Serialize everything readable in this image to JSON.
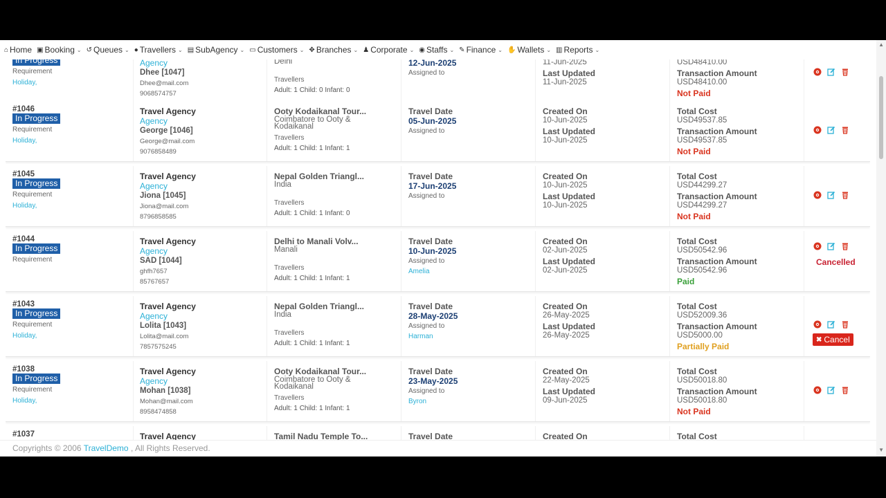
{
  "nav": [
    {
      "label": "Home",
      "icon": "home-icon",
      "chevron": false
    },
    {
      "label": "Booking",
      "icon": "briefcase-icon",
      "chevron": true
    },
    {
      "label": "Queues",
      "icon": "history-icon",
      "chevron": true
    },
    {
      "label": "Travellers",
      "icon": "user-icon",
      "chevron": true
    },
    {
      "label": "SubAgency",
      "icon": "building-icon",
      "chevron": true
    },
    {
      "label": "Customers",
      "icon": "id-card-icon",
      "chevron": true
    },
    {
      "label": "Branches",
      "icon": "sitemap-icon",
      "chevron": true
    },
    {
      "label": "Corporate",
      "icon": "users-icon",
      "chevron": true
    },
    {
      "label": "Staffs",
      "icon": "user-circle-icon",
      "chevron": true
    },
    {
      "label": "Finance",
      "icon": "pen-icon",
      "chevron": true
    },
    {
      "label": "Wallets",
      "icon": "handshake-icon",
      "chevron": true
    },
    {
      "label": "Reports",
      "icon": "bar-chart-icon",
      "chevron": true
    }
  ],
  "rows": [
    {
      "id": "",
      "status": "In Progress",
      "req": "Requirement",
      "holiday": "Holiday,",
      "agency": "",
      "agency_label": "Agency",
      "customer": "Dhee [1047]",
      "email": "Dhee@mail.com",
      "phone": "9068574757",
      "tour": "",
      "dest": "Delhi",
      "trav_label": "Travellers",
      "pax": "Adult: 1  Child: 0  Infant: 0",
      "travel_date_label": "",
      "travel_date": "12-Jun-2025",
      "assigned_label": "Assigned to",
      "assigned": "",
      "created_label": "",
      "created": "11-Jun-2025",
      "updated_label": "Last Updated",
      "updated": "11-Jun-2025",
      "cost_label": "",
      "cost": "USD48410.00",
      "txn_label": "Transaction Amount",
      "txn": "USD48410.00",
      "pay_status": "Not Paid",
      "pay_type": "np",
      "extra": ""
    },
    {
      "id": "#1046",
      "status": "In Progress",
      "req": "Requirement",
      "holiday": "Holiday,",
      "agency": "Travel Agency",
      "agency_label": "Agency",
      "customer": "George [1046]",
      "email": "George@mail.com",
      "phone": "9076858489",
      "tour": "Ooty Kodaikanal Tour...",
      "dest": "Coimbatore to Ooty & Kodaikanal",
      "trav_label": "Travellers",
      "pax": "Adult: 1  Child: 1  Infant: 1",
      "travel_date_label": "Travel Date",
      "travel_date": "05-Jun-2025",
      "assigned_label": "Assigned to",
      "assigned": "",
      "created_label": "Created On",
      "created": "10-Jun-2025",
      "updated_label": "Last Updated",
      "updated": "10-Jun-2025",
      "cost_label": "Total Cost",
      "cost": "USD49537.85",
      "txn_label": "Transaction Amount",
      "txn": "USD49537.85",
      "pay_status": "Not Paid",
      "pay_type": "np",
      "extra": ""
    },
    {
      "id": "#1045",
      "status": "In Progress",
      "req": "Requirement",
      "holiday": "Holiday,",
      "agency": "Travel Agency",
      "agency_label": "Agency",
      "customer": "Jiona [1045]",
      "email": "Jiona@mail.com",
      "phone": "8796858585",
      "tour": "Nepal Golden Triangl...",
      "dest": "India",
      "trav_label": "Travellers",
      "pax": "Adult: 1  Child: 1  Infant: 0",
      "travel_date_label": "Travel Date",
      "travel_date": "17-Jun-2025",
      "assigned_label": "Assigned to",
      "assigned": "",
      "created_label": "Created On",
      "created": "10-Jun-2025",
      "updated_label": "Last Updated",
      "updated": "10-Jun-2025",
      "cost_label": "Total Cost",
      "cost": "USD44299.27",
      "txn_label": "Transaction Amount",
      "txn": "USD44299.27",
      "pay_status": "Not Paid",
      "pay_type": "np",
      "extra": ""
    },
    {
      "id": "#1044",
      "status": "In Progress",
      "req": "Requirement",
      "holiday": "",
      "agency": "Travel Agency",
      "agency_label": "Agency",
      "customer": "SAD [1044]",
      "email": "ghfh7657",
      "phone": "85767657",
      "tour": "Delhi to Manali Volv...",
      "dest": "Manali",
      "trav_label": "Travellers",
      "pax": "Adult: 1  Child: 1  Infant: 1",
      "travel_date_label": "Travel Date",
      "travel_date": "10-Jun-2025",
      "assigned_label": "Assigned to",
      "assigned": "Amelia",
      "created_label": "Created On",
      "created": "02-Jun-2025",
      "updated_label": "Last Updated",
      "updated": "02-Jun-2025",
      "cost_label": "Total Cost",
      "cost": "USD50542.96",
      "txn_label": "Transaction Amount",
      "txn": "USD50542.96",
      "pay_status": "Paid",
      "pay_type": "pd",
      "extra": "cancelled"
    },
    {
      "id": "#1043",
      "status": "In Progress",
      "req": "Requirement",
      "holiday": "Holiday,",
      "agency": "Travel Agency",
      "agency_label": "Agency",
      "customer": "Lolita [1043]",
      "email": "Lolita@mail.com",
      "phone": "7857575245",
      "tour": "Nepal Golden Triangl...",
      "dest": "India",
      "trav_label": "Travellers",
      "pax": "Adult: 1  Child: 1  Infant: 1",
      "travel_date_label": "Travel Date",
      "travel_date": "28-May-2025",
      "assigned_label": "Assigned to",
      "assigned": "Harman",
      "created_label": "Created On",
      "created": "26-May-2025",
      "updated_label": "Last Updated",
      "updated": "26-May-2025",
      "cost_label": "Total Cost",
      "cost": "USD52009.36",
      "txn_label": "Transaction Amount",
      "txn": "USD5000.00",
      "pay_status": "Partially Paid",
      "pay_type": "pp",
      "extra": "cancel-button"
    },
    {
      "id": "#1038",
      "status": "In Progress",
      "req": "Requirement",
      "holiday": "Holiday,",
      "agency": "Travel Agency",
      "agency_label": "Agency",
      "customer": "Mohan [1038]",
      "email": "Mohan@mail.com",
      "phone": "8958474858",
      "tour": "Ooty Kodaikanal Tour...",
      "dest": "Coimbatore to Ooty & Kodaikanal",
      "trav_label": "Travellers",
      "pax": "Adult: 1  Child: 1  Infant: 1",
      "travel_date_label": "Travel Date",
      "travel_date": "23-May-2025",
      "assigned_label": "Assigned to",
      "assigned": "Byron",
      "created_label": "Created On",
      "created": "22-May-2025",
      "updated_label": "Last Updated",
      "updated": "09-Jun-2025",
      "cost_label": "Total Cost",
      "cost": "USD50018.80",
      "txn_label": "Transaction Amount",
      "txn": "USD50018.80",
      "pay_status": "Not Paid",
      "pay_type": "np",
      "extra": ""
    },
    {
      "id": "#1037",
      "status": "",
      "req": "",
      "holiday": "",
      "agency": "Travel Agency",
      "agency_label": "",
      "customer": "",
      "email": "",
      "phone": "",
      "tour": "Tamil Nadu Temple To...",
      "dest": "",
      "trav_label": "",
      "pax": "",
      "travel_date_label": "Travel Date",
      "travel_date": "",
      "assigned_label": "",
      "assigned": "",
      "created_label": "Created On",
      "created": "",
      "updated_label": "",
      "updated": "",
      "cost_label": "Total Cost",
      "cost": "",
      "txn_label": "",
      "txn": "",
      "pay_status": "",
      "pay_type": "",
      "extra": ""
    }
  ],
  "cancelled_text": "Cancelled",
  "cancel_button_label": "Cancel",
  "footer": {
    "prefix": "Copyrights © 2006",
    "brand": "TravelDemo",
    "suffix": ", All Rights Reserved."
  },
  "colors": {
    "badge": "#1f5fa8",
    "accent": "#2bb0d6",
    "not_paid": "#d9341f",
    "paid": "#3aa03a",
    "partial": "#e0a020",
    "cancel": "#d9261c"
  }
}
